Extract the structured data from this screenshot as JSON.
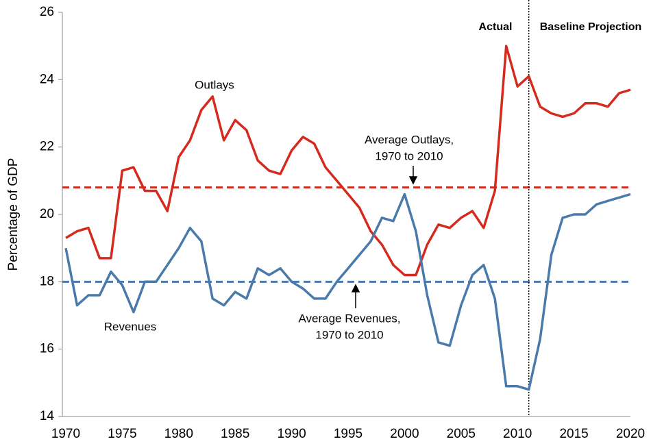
{
  "chart_data": {
    "type": "line",
    "y_label": "Percentage of GDP",
    "x": [
      1970,
      1971,
      1972,
      1973,
      1974,
      1975,
      1976,
      1977,
      1978,
      1979,
      1980,
      1981,
      1982,
      1983,
      1984,
      1985,
      1986,
      1987,
      1988,
      1989,
      1990,
      1991,
      1992,
      1993,
      1994,
      1995,
      1996,
      1997,
      1998,
      1999,
      2000,
      2001,
      2002,
      2003,
      2004,
      2005,
      2006,
      2007,
      2008,
      2009,
      2010,
      2011,
      2012,
      2013,
      2014,
      2015,
      2016,
      2017,
      2018,
      2019,
      2020
    ],
    "series": [
      {
        "name": "Outlays",
        "color": "#d52a1e",
        "values": [
          19.3,
          19.5,
          19.6,
          18.7,
          18.7,
          21.3,
          21.4,
          20.7,
          20.7,
          20.1,
          21.7,
          22.2,
          23.1,
          23.5,
          22.2,
          22.8,
          22.5,
          21.6,
          21.3,
          21.2,
          21.9,
          22.3,
          22.1,
          21.4,
          21.0,
          20.6,
          20.2,
          19.5,
          19.1,
          18.5,
          18.2,
          18.2,
          19.1,
          19.7,
          19.6,
          19.9,
          20.1,
          19.6,
          20.7,
          25.0,
          23.8,
          24.1,
          23.2,
          23.0,
          22.9,
          23.0,
          23.3,
          23.3,
          23.2,
          23.6,
          23.7
        ]
      },
      {
        "name": "Revenues",
        "color": "#4a7aab",
        "values": [
          19.0,
          17.3,
          17.6,
          17.6,
          18.3,
          17.9,
          17.1,
          18.0,
          18.0,
          18.5,
          19.0,
          19.6,
          19.2,
          17.5,
          17.3,
          17.7,
          17.5,
          18.4,
          18.2,
          18.4,
          18.0,
          17.8,
          17.5,
          17.5,
          18.0,
          18.4,
          18.8,
          19.2,
          19.9,
          19.8,
          20.6,
          19.5,
          17.6,
          16.2,
          16.1,
          17.3,
          18.2,
          18.5,
          17.5,
          14.9,
          14.9,
          14.8,
          16.3,
          18.8,
          19.9,
          20.0,
          20.0,
          20.3,
          20.4,
          20.5,
          20.6
        ]
      }
    ],
    "reference_lines": [
      {
        "value": 20.8,
        "color": "#d52a1e"
      },
      {
        "value": 18.0,
        "color": "#4a7aab"
      }
    ],
    "divider": 2011,
    "annotations": [
      "Outlays",
      "Revenues",
      [
        "Average Outlays,",
        "1970 to 2010"
      ],
      [
        "Average Revenues,",
        "1970 to 2010"
      ],
      "Actual",
      "Baseline Projection"
    ],
    "xlim": [
      1970,
      2020
    ],
    "xticks": [
      1970,
      1975,
      1980,
      1985,
      1990,
      1995,
      2000,
      2005,
      2010,
      2015,
      2020
    ],
    "ylim": [
      14,
      26
    ],
    "yticks": [
      14,
      16,
      18,
      20,
      22,
      24,
      26
    ]
  }
}
